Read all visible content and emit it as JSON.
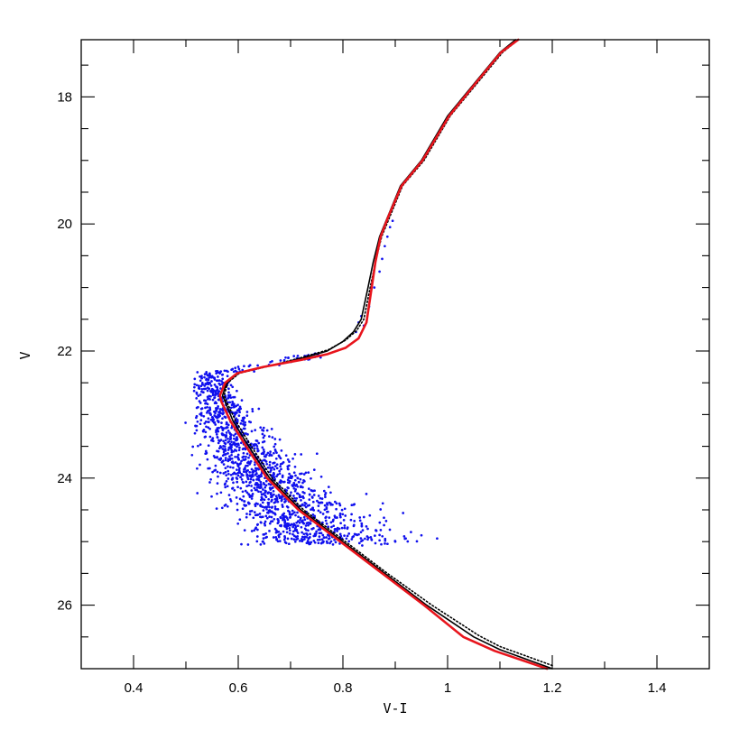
{
  "chart_data": {
    "type": "scatter",
    "title": "",
    "xlabel": "V-I",
    "ylabel": "V",
    "xlim": [
      0.3,
      1.5
    ],
    "ylim": [
      27.0,
      17.1
    ],
    "y_inverted": true,
    "x_ticks": [
      0.4,
      0.6,
      0.8,
      1,
      1.2,
      1.4
    ],
    "x_tick_labels": [
      "0.4",
      "0.6",
      "0.8",
      "1",
      "1.2",
      "1.4"
    ],
    "y_ticks": [
      18,
      20,
      22,
      24,
      26
    ],
    "y_tick_labels": [
      "18",
      "20",
      "22",
      "24",
      "26"
    ],
    "grid": false,
    "legend": "none",
    "series": [
      {
        "kind": "points",
        "color": "#1010ee",
        "description_count": 1500,
        "ridge": [
          [
            0.548,
            22.6
          ],
          [
            0.565,
            23.0
          ],
          [
            0.59,
            23.4
          ],
          [
            0.625,
            23.8
          ],
          [
            0.665,
            24.2
          ],
          [
            0.715,
            24.6
          ],
          [
            0.76,
            25.0
          ]
        ],
        "band": {
          "v_min": 22.3,
          "v_max": 25.05,
          "width_blue": 0.05,
          "width_red": 0.1
        },
        "upper_branch": [
          [
            0.56,
            22.35
          ],
          [
            0.62,
            22.25
          ],
          [
            0.7,
            22.15
          ],
          [
            0.75,
            22.05
          ]
        ],
        "subgiant_points": [
          [
            0.83,
            21.55
          ],
          [
            0.835,
            21.45
          ],
          [
            0.85,
            21.3
          ],
          [
            0.86,
            21.0
          ],
          [
            0.87,
            20.75
          ],
          [
            0.875,
            20.55
          ],
          [
            0.88,
            20.35
          ],
          [
            0.885,
            20.2
          ],
          [
            0.89,
            20.05
          ],
          [
            0.895,
            19.95
          ],
          [
            0.84,
            21.6
          ],
          [
            0.825,
            21.7
          ]
        ],
        "outliers": [
          [
            0.93,
            24.85
          ],
          [
            0.95,
            24.9
          ],
          [
            0.98,
            24.95
          ],
          [
            0.92,
            24.95
          ],
          [
            0.9,
            25.0
          ]
        ]
      },
      {
        "kind": "line",
        "color": "#000000",
        "dash": "solid",
        "points": [
          [
            1.2,
            27.0
          ],
          [
            1.1,
            26.7
          ],
          [
            1.05,
            26.5
          ],
          [
            0.96,
            26.0
          ],
          [
            0.88,
            25.5
          ],
          [
            0.8,
            25.0
          ],
          [
            0.72,
            24.5
          ],
          [
            0.66,
            24.0
          ],
          [
            0.62,
            23.5
          ],
          [
            0.59,
            23.1
          ],
          [
            0.575,
            22.8
          ],
          [
            0.57,
            22.7
          ],
          [
            0.578,
            22.5
          ],
          [
            0.6,
            22.35
          ],
          [
            0.65,
            22.25
          ],
          [
            0.72,
            22.12
          ],
          [
            0.77,
            22.0
          ],
          [
            0.8,
            21.85
          ],
          [
            0.82,
            21.7
          ],
          [
            0.835,
            21.5
          ],
          [
            0.848,
            21.0
          ],
          [
            0.858,
            20.6
          ],
          [
            0.87,
            20.2
          ],
          [
            0.885,
            19.9
          ],
          [
            0.91,
            19.4
          ],
          [
            0.95,
            19.0
          ],
          [
            1.0,
            18.3
          ],
          [
            1.05,
            17.8
          ],
          [
            1.1,
            17.3
          ],
          [
            1.13,
            17.1
          ]
        ]
      },
      {
        "kind": "line",
        "color": "#000000",
        "dash": "dotted",
        "points": [
          [
            1.2,
            26.95
          ],
          [
            1.1,
            26.65
          ],
          [
            1.06,
            26.48
          ],
          [
            0.97,
            26.0
          ],
          [
            0.885,
            25.5
          ],
          [
            0.805,
            25.0
          ],
          [
            0.725,
            24.5
          ],
          [
            0.665,
            24.0
          ],
          [
            0.625,
            23.5
          ],
          [
            0.595,
            23.1
          ],
          [
            0.578,
            22.8
          ],
          [
            0.573,
            22.7
          ],
          [
            0.58,
            22.5
          ],
          [
            0.602,
            22.35
          ],
          [
            0.652,
            22.25
          ],
          [
            0.722,
            22.1
          ],
          [
            0.772,
            21.98
          ],
          [
            0.805,
            21.83
          ],
          [
            0.826,
            21.68
          ],
          [
            0.84,
            21.5
          ],
          [
            0.852,
            21.0
          ],
          [
            0.862,
            20.6
          ],
          [
            0.874,
            20.2
          ],
          [
            0.889,
            19.9
          ],
          [
            0.914,
            19.4
          ],
          [
            0.955,
            19.0
          ],
          [
            1.005,
            18.3
          ],
          [
            1.055,
            17.8
          ],
          [
            1.105,
            17.3
          ],
          [
            1.135,
            17.1
          ]
        ]
      },
      {
        "kind": "line",
        "color": "#e8141c",
        "dash": "solid",
        "points": [
          [
            1.19,
            27.0
          ],
          [
            1.09,
            26.72
          ],
          [
            1.03,
            26.5
          ],
          [
            0.955,
            26.0
          ],
          [
            0.875,
            25.5
          ],
          [
            0.795,
            25.0
          ],
          [
            0.715,
            24.5
          ],
          [
            0.655,
            24.0
          ],
          [
            0.615,
            23.5
          ],
          [
            0.585,
            23.1
          ],
          [
            0.568,
            22.8
          ],
          [
            0.565,
            22.7
          ],
          [
            0.575,
            22.5
          ],
          [
            0.598,
            22.35
          ],
          [
            0.648,
            22.25
          ],
          [
            0.72,
            22.14
          ],
          [
            0.77,
            22.05
          ],
          [
            0.805,
            21.95
          ],
          [
            0.83,
            21.8
          ],
          [
            0.845,
            21.55
          ],
          [
            0.855,
            21.0
          ],
          [
            0.862,
            20.6
          ],
          [
            0.872,
            20.2
          ],
          [
            0.886,
            19.9
          ],
          [
            0.912,
            19.4
          ],
          [
            0.952,
            19.0
          ],
          [
            1.003,
            18.3
          ],
          [
            1.052,
            17.8
          ],
          [
            1.102,
            17.3
          ],
          [
            1.135,
            17.1
          ]
        ]
      }
    ]
  }
}
